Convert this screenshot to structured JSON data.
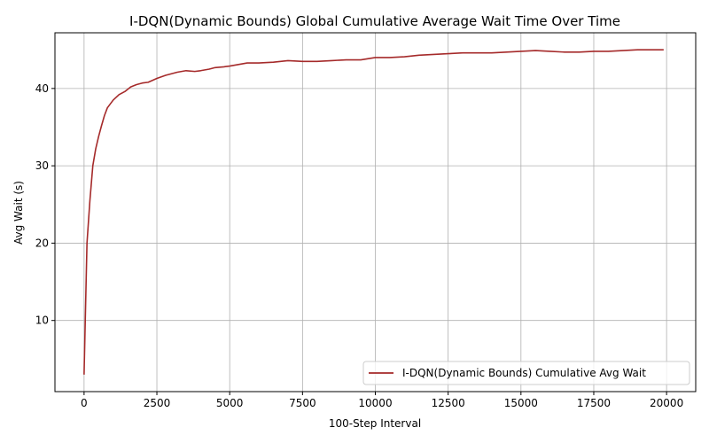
{
  "chart_data": {
    "type": "line",
    "title": "I-DQN(Dynamic Bounds) Global Cumulative Average Wait Time Over Time",
    "xlabel": "100-Step Interval",
    "ylabel": "Avg Wait (s)",
    "xlim": [
      -1000,
      21000
    ],
    "ylim": [
      0.8,
      47.2
    ],
    "xticks": [
      0,
      2500,
      5000,
      7500,
      10000,
      12500,
      15000,
      17500,
      20000
    ],
    "yticks": [
      10,
      20,
      30,
      40
    ],
    "grid": true,
    "legend_position": "lower-right",
    "series": [
      {
        "name": "I-DQN(Dynamic Bounds) Cumulative Avg Wait",
        "color": "#a52a2a",
        "x": [
          0,
          100,
          200,
          300,
          400,
          500,
          600,
          700,
          800,
          900,
          1000,
          1200,
          1400,
          1600,
          1800,
          2000,
          2200,
          2500,
          2800,
          3000,
          3200,
          3500,
          3800,
          4000,
          4300,
          4500,
          4800,
          5000,
          5300,
          5600,
          6000,
          6500,
          7000,
          7500,
          8000,
          8500,
          9000,
          9500,
          10000,
          10500,
          11000,
          11500,
          12000,
          12500,
          13000,
          13500,
          14000,
          14500,
          15000,
          15500,
          16000,
          16500,
          17000,
          17500,
          18000,
          18500,
          19000,
          19500,
          19900
        ],
        "y": [
          3.0,
          20.0,
          25.5,
          30.0,
          32.2,
          33.8,
          35.2,
          36.5,
          37.5,
          38.0,
          38.5,
          39.2,
          39.6,
          40.2,
          40.5,
          40.7,
          40.8,
          41.3,
          41.7,
          41.9,
          42.1,
          42.3,
          42.2,
          42.3,
          42.5,
          42.7,
          42.8,
          42.9,
          43.1,
          43.3,
          43.3,
          43.4,
          43.6,
          43.5,
          43.5,
          43.6,
          43.7,
          43.7,
          44.0,
          44.0,
          44.1,
          44.3,
          44.4,
          44.5,
          44.6,
          44.6,
          44.6,
          44.7,
          44.8,
          44.9,
          44.8,
          44.7,
          44.7,
          44.8,
          44.8,
          44.9,
          45.0,
          45.0,
          45.0
        ]
      }
    ]
  }
}
